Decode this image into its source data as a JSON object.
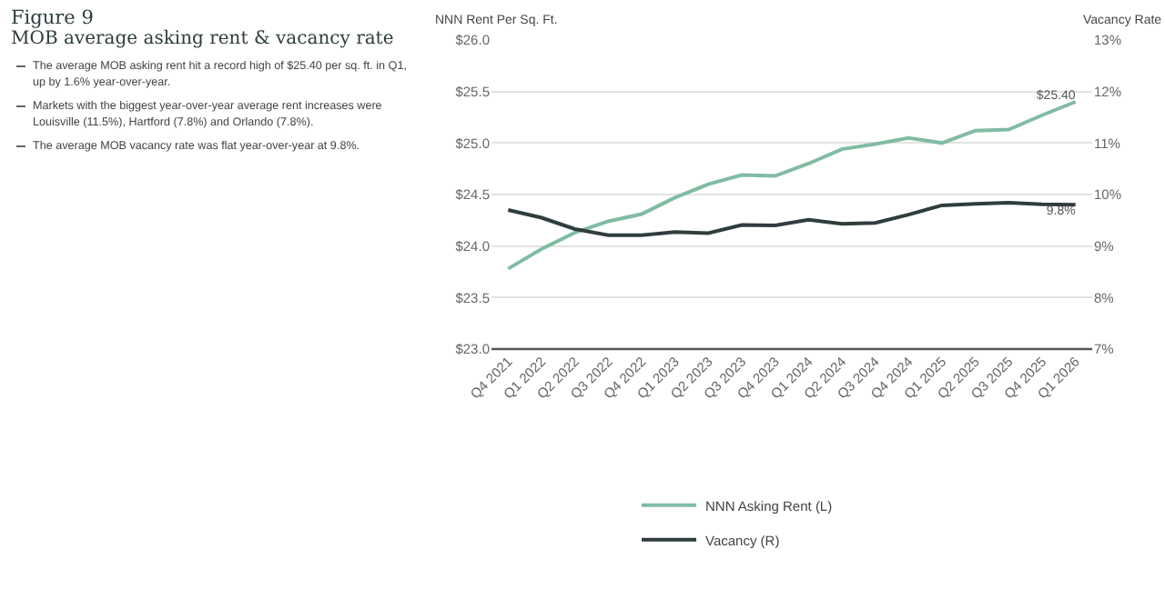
{
  "chart_data": {
    "type": "line",
    "title": "Figure 9",
    "subtitle": "MOB average asking rent & vacancy rate",
    "annotations": [
      "The average MOB asking rent hit a record high of $25.40 per sq. ft. in Q1, up by 1.6% year-over-year.",
      "Markets with the biggest year-over-year average rent increases were Louisville (11.5%), Hartford (7.8%) and Orlando (7.8%).",
      "The average MOB vacancy rate was flat year-over-year at 9.8%."
    ],
    "ylabel": "NNN Rent Per Sq. Ft.",
    "y2label": "Vacancy Rate",
    "categories": [
      "Q4 2021",
      "Q1 2022",
      "Q2 2022",
      "Q3 2022",
      "Q4 2022",
      "Q1 2023",
      "Q2 2023",
      "Q3 2023",
      "Q4 2023",
      "Q1 2024",
      "Q2 2024",
      "Q3 2024",
      "Q4 2024",
      "Q1 2025",
      "Q2 2025",
      "Q3 2025",
      "Q4 2025",
      "Q1 2026"
    ],
    "series": [
      {
        "name": "NNN Asking Rent (L)",
        "color": "#80bca3",
        "values": [
          23.78,
          23.97,
          24.13,
          24.24,
          24.31,
          24.47,
          24.6,
          24.69,
          24.68,
          24.8,
          24.94,
          24.99,
          25.05,
          25.0,
          25.12,
          25.13,
          25.27,
          25.4
        ],
        "value_labels": [
          null,
          null,
          null,
          null,
          null,
          null,
          null,
          null,
          null,
          null,
          null,
          null,
          null,
          null,
          null,
          null,
          null,
          "$25.40"
        ]
      },
      {
        "name": "Vacancy (R)",
        "color": "#2f3d3e",
        "axis": "y2",
        "values": [
          9.7,
          9.55,
          9.33,
          9.21,
          9.21,
          9.27,
          9.25,
          9.41,
          9.4,
          9.51,
          9.43,
          9.45,
          9.61,
          9.79,
          9.82,
          9.84,
          9.81,
          9.8
        ],
        "value_labels": [
          null,
          null,
          null,
          null,
          null,
          null,
          null,
          null,
          null,
          null,
          null,
          null,
          null,
          null,
          null,
          null,
          null,
          "9.8%"
        ]
      }
    ],
    "ylim": [
      23,
      26
    ],
    "yticks": [
      {
        "value": 23,
        "label": "$23.0"
      },
      {
        "value": 23.5,
        "label": "$23.5"
      },
      {
        "value": 24,
        "label": "$24.0"
      },
      {
        "value": 24.5,
        "label": "$24.5"
      },
      {
        "value": 25,
        "label": "$25.0"
      },
      {
        "value": 25.5,
        "label": "$25.5"
      },
      {
        "value": 26,
        "label": "$26.0"
      }
    ],
    "y2lim": [
      7,
      13
    ],
    "y2ticks": [
      {
        "value": 7,
        "label": "7%"
      },
      {
        "value": 8,
        "label": "8%"
      },
      {
        "value": 9,
        "label": "9%"
      },
      {
        "value": 10,
        "label": "10%"
      },
      {
        "value": 11,
        "label": "11%"
      },
      {
        "value": 12,
        "label": "12%"
      },
      {
        "value": 13,
        "label": "13%"
      }
    ],
    "grid": "y",
    "legend": "bottom",
    "marker": "none",
    "line_style": "solid"
  }
}
